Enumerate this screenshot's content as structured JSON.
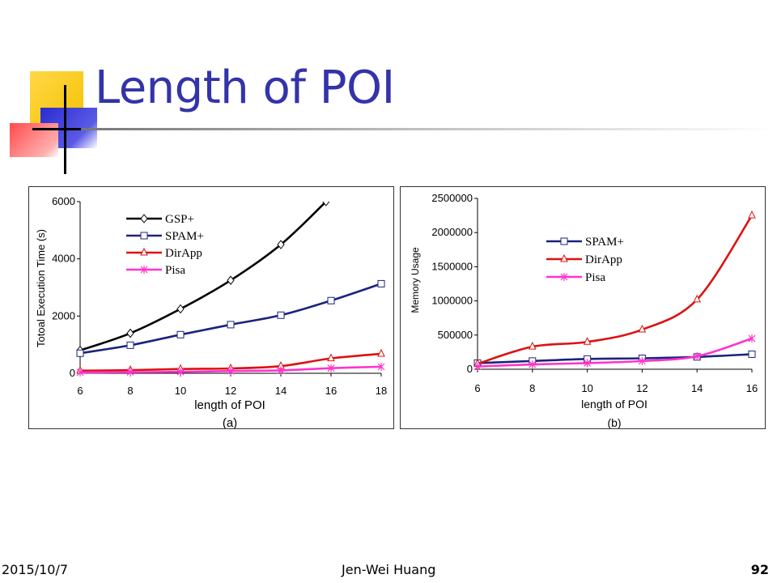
{
  "slide": {
    "title": "Length of POI",
    "footer_date": "2015/10/7",
    "footer_author": "Jen-Wei Huang",
    "page_number": "92",
    "colors": {
      "title": "#3333aa",
      "deco_yellow": "#ffd23f",
      "deco_blue": "#3333cc",
      "deco_red": "#ff6666"
    }
  },
  "chart_data": [
    {
      "type": "line",
      "ylabel": "Totoal Execution Time (s)",
      "xlabel": "length of POI",
      "caption": "(a)",
      "x": [
        6,
        8,
        10,
        12,
        14,
        16,
        18
      ],
      "xlim": [
        6,
        18
      ],
      "ylim": [
        0,
        6000
      ],
      "x_ticks": [
        "6",
        "8",
        "10",
        "12",
        "14",
        "16",
        "18"
      ],
      "y_ticks": [
        "0",
        "2000",
        "4000",
        "6000"
      ],
      "legend_position": "top-center",
      "series": [
        {
          "name": "GSP+",
          "color": "#000000",
          "marker": "diamond",
          "x": [
            6,
            8,
            10,
            12,
            14,
            15.8
          ],
          "values": [
            800,
            1400,
            2250,
            3250,
            4500,
            6000
          ]
        },
        {
          "name": "SPAM+",
          "color": "#1a237e",
          "marker": "square",
          "x": [
            6,
            8,
            10,
            12,
            14,
            16,
            18
          ],
          "values": [
            700,
            980,
            1350,
            1700,
            2030,
            2540,
            3130
          ]
        },
        {
          "name": "DirApp",
          "color": "#dd1111",
          "marker": "triangle",
          "x": [
            6,
            8,
            10,
            12,
            14,
            16,
            18
          ],
          "values": [
            90,
            110,
            150,
            170,
            250,
            520,
            680
          ]
        },
        {
          "name": "Pisa",
          "color": "#ff33cc",
          "marker": "star",
          "x": [
            6,
            8,
            10,
            12,
            14,
            16,
            18
          ],
          "values": [
            30,
            40,
            50,
            80,
            100,
            180,
            230
          ]
        }
      ]
    },
    {
      "type": "line",
      "ylabel": "Memory Usage",
      "xlabel": "length of POI",
      "caption": "(b)",
      "x": [
        6,
        8,
        10,
        12,
        14,
        16
      ],
      "xlim": [
        6,
        16
      ],
      "ylim": [
        0,
        2500000
      ],
      "x_ticks": [
        "6",
        "8",
        "10",
        "12",
        "14",
        "16"
      ],
      "y_ticks": [
        "0",
        "500000",
        "1000000",
        "1500000",
        "2000000",
        "2500000"
      ],
      "legend_position": "top-center",
      "series": [
        {
          "name": "SPAM+",
          "color": "#1a237e",
          "marker": "square",
          "x": [
            6,
            8,
            10,
            12,
            14,
            16
          ],
          "values": [
            90000,
            120000,
            150000,
            160000,
            180000,
            220000
          ]
        },
        {
          "name": "DirApp",
          "color": "#dd1111",
          "marker": "triangle",
          "x": [
            6,
            8,
            10,
            12,
            14,
            16
          ],
          "values": [
            80000,
            330000,
            400000,
            580000,
            1020000,
            2250000
          ]
        },
        {
          "name": "Pisa",
          "color": "#ff33cc",
          "marker": "star",
          "x": [
            6,
            8,
            10,
            12,
            14,
            16
          ],
          "values": [
            40000,
            70000,
            90000,
            120000,
            190000,
            450000
          ]
        }
      ]
    }
  ]
}
